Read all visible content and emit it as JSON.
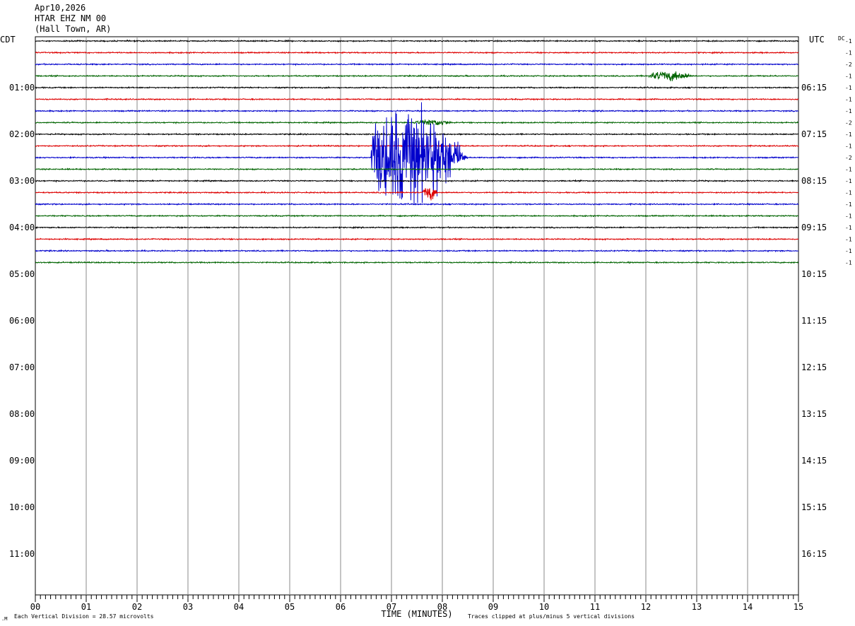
{
  "header": {
    "date": "Apr10,2026",
    "station": "HTAR EHZ NM 00",
    "location": "(Hall Town, AR)"
  },
  "labels": {
    "left_tz": "CDT",
    "right_tz": "UTC",
    "dc_label": "DC",
    "xlabel": "TIME (MINUTES)",
    "scale_note": "Each Vertical Division =   28.57 microvolts",
    "clip_note": "Traces clipped at plus/minus 5 vertical divisions"
  },
  "chart_data": {
    "type": "line",
    "title": "HTAR EHZ NM 00",
    "xlabel": "TIME (MINUTES)",
    "xlim": [
      0,
      15
    ],
    "x_ticks": [
      "00",
      "01",
      "02",
      "03",
      "04",
      "05",
      "06",
      "07",
      "08",
      "09",
      "10",
      "11",
      "12",
      "13",
      "14",
      "15"
    ],
    "left_hour_labels": [
      "01:00",
      "02:00",
      "03:00",
      "04:00",
      "05:00",
      "06:00",
      "07:00",
      "08:00",
      "09:00",
      "10:00",
      "11:00"
    ],
    "right_hour_labels": [
      "06:15",
      "07:15",
      "08:15",
      "09:15",
      "10:15",
      "11:15",
      "12:15",
      "13:15",
      "14:15",
      "15:15",
      "16:15"
    ],
    "trace_colors": [
      "#000000",
      "#dd0000",
      "#0000cc",
      "#006400"
    ],
    "dc_offsets": [
      "-1",
      "-1",
      "-2",
      "-1",
      "-1",
      "-1",
      "-1",
      "-2",
      "-1",
      "-1",
      "-2",
      "-1",
      "-1",
      "-1",
      "-1",
      "-1",
      "-1",
      "-1",
      "-1",
      "-1"
    ],
    "trace_count": 20,
    "events": [
      {
        "trace": 3,
        "start_min": 12.05,
        "end_min": 13.0,
        "amplitude_div": 0.5,
        "center_min": 12.45
      },
      {
        "trace": 10,
        "start_min": 6.6,
        "end_min": 9.0,
        "amplitude_div": 5,
        "center_min": 7.3
      },
      {
        "trace": 7,
        "start_min": 7.4,
        "end_min": 8.2,
        "amplitude_div": 0.3,
        "center_min": 7.8
      },
      {
        "trace": 13,
        "start_min": 7.6,
        "end_min": 7.9,
        "amplitude_div": 0.8,
        "center_min": 7.75
      }
    ]
  }
}
